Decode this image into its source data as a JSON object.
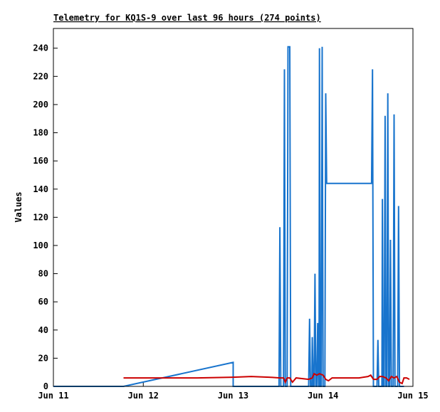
{
  "page": {
    "background": "#ffffff"
  },
  "chart_data": {
    "type": "line",
    "title": "Telemetry for KQ1S-9 over last 96 hours (274 points)",
    "ylabel": "Values",
    "xlabel": "",
    "xlim": [
      0,
      4
    ],
    "ylim": [
      0,
      254
    ],
    "grid": false,
    "legend": "none",
    "x_unit": "days (x-axis labeled by date)",
    "x_ticks": [
      {
        "value": 0,
        "label": "Jun 11"
      },
      {
        "value": 1,
        "label": "Jun 12"
      },
      {
        "value": 2,
        "label": "Jun 13"
      },
      {
        "value": 3,
        "label": "Jun 14"
      },
      {
        "value": 4,
        "label": "Jun 15"
      }
    ],
    "y_ticks": [
      0,
      20,
      40,
      60,
      80,
      100,
      120,
      140,
      160,
      180,
      200,
      220,
      240
    ],
    "series": [
      {
        "name": "blue-values",
        "color": "#1874cd",
        "width": 2,
        "points": [
          [
            0,
            0
          ],
          [
            0.78,
            0
          ],
          [
            2.0,
            17
          ],
          [
            2.0,
            0
          ],
          [
            2.49,
            0
          ],
          [
            2.51,
            0
          ],
          [
            2.52,
            113
          ],
          [
            2.53,
            0
          ],
          [
            2.56,
            0
          ],
          [
            2.57,
            225
          ],
          [
            2.58,
            0
          ],
          [
            2.6,
            0
          ],
          [
            2.61,
            241
          ],
          [
            2.63,
            241
          ],
          [
            2.64,
            0
          ],
          [
            2.84,
            0
          ],
          [
            2.85,
            48
          ],
          [
            2.86,
            0
          ],
          [
            2.875,
            0
          ],
          [
            2.88,
            35
          ],
          [
            2.89,
            0
          ],
          [
            2.9,
            0
          ],
          [
            2.91,
            80
          ],
          [
            2.92,
            0
          ],
          [
            2.93,
            0
          ],
          [
            2.94,
            45
          ],
          [
            2.95,
            0
          ],
          [
            2.955,
            0
          ],
          [
            2.96,
            240
          ],
          [
            2.97,
            0
          ],
          [
            2.98,
            0
          ],
          [
            2.99,
            241
          ],
          [
            3.0,
            0
          ],
          [
            3.02,
            0
          ],
          [
            3.03,
            208
          ],
          [
            3.04,
            144
          ],
          [
            3.54,
            144
          ],
          [
            3.55,
            225
          ],
          [
            3.56,
            0
          ],
          [
            3.6,
            0
          ],
          [
            3.61,
            33
          ],
          [
            3.62,
            0
          ],
          [
            3.655,
            0
          ],
          [
            3.66,
            133
          ],
          [
            3.67,
            0
          ],
          [
            3.68,
            0
          ],
          [
            3.69,
            192
          ],
          [
            3.7,
            0
          ],
          [
            3.71,
            0
          ],
          [
            3.72,
            208
          ],
          [
            3.73,
            0
          ],
          [
            3.74,
            0
          ],
          [
            3.75,
            104
          ],
          [
            3.76,
            0
          ],
          [
            3.78,
            0
          ],
          [
            3.79,
            193
          ],
          [
            3.8,
            0
          ],
          [
            3.83,
            0
          ],
          [
            3.84,
            128
          ],
          [
            3.85,
            0
          ],
          [
            3.9,
            0
          ]
        ]
      },
      {
        "name": "red-values",
        "color": "#cc0000",
        "width": 2,
        "points": [
          [
            0.78,
            6
          ],
          [
            1.2,
            6
          ],
          [
            1.6,
            6
          ],
          [
            2.0,
            6.5
          ],
          [
            2.2,
            7
          ],
          [
            2.4,
            6.5
          ],
          [
            2.52,
            6
          ],
          [
            2.56,
            6
          ],
          [
            2.58,
            3
          ],
          [
            2.6,
            6
          ],
          [
            2.63,
            6
          ],
          [
            2.66,
            3
          ],
          [
            2.7,
            6
          ],
          [
            2.84,
            5
          ],
          [
            2.88,
            6
          ],
          [
            2.9,
            9
          ],
          [
            2.93,
            8
          ],
          [
            2.96,
            9
          ],
          [
            3.0,
            8
          ],
          [
            3.03,
            5
          ],
          [
            3.06,
            4
          ],
          [
            3.1,
            6
          ],
          [
            3.2,
            6
          ],
          [
            3.3,
            6
          ],
          [
            3.4,
            6
          ],
          [
            3.5,
            7
          ],
          [
            3.53,
            8
          ],
          [
            3.56,
            5
          ],
          [
            3.6,
            5
          ],
          [
            3.63,
            7
          ],
          [
            3.66,
            7
          ],
          [
            3.7,
            6
          ],
          [
            3.73,
            4
          ],
          [
            3.76,
            7
          ],
          [
            3.79,
            6
          ],
          [
            3.82,
            7
          ],
          [
            3.85,
            3
          ],
          [
            3.88,
            2
          ],
          [
            3.9,
            6
          ],
          [
            3.93,
            6
          ],
          [
            3.96,
            5
          ]
        ]
      },
      {
        "name": "black-baseline",
        "color": "#000000",
        "width": 1,
        "points": [
          [
            0,
            0
          ],
          [
            3.96,
            0
          ]
        ]
      }
    ]
  }
}
